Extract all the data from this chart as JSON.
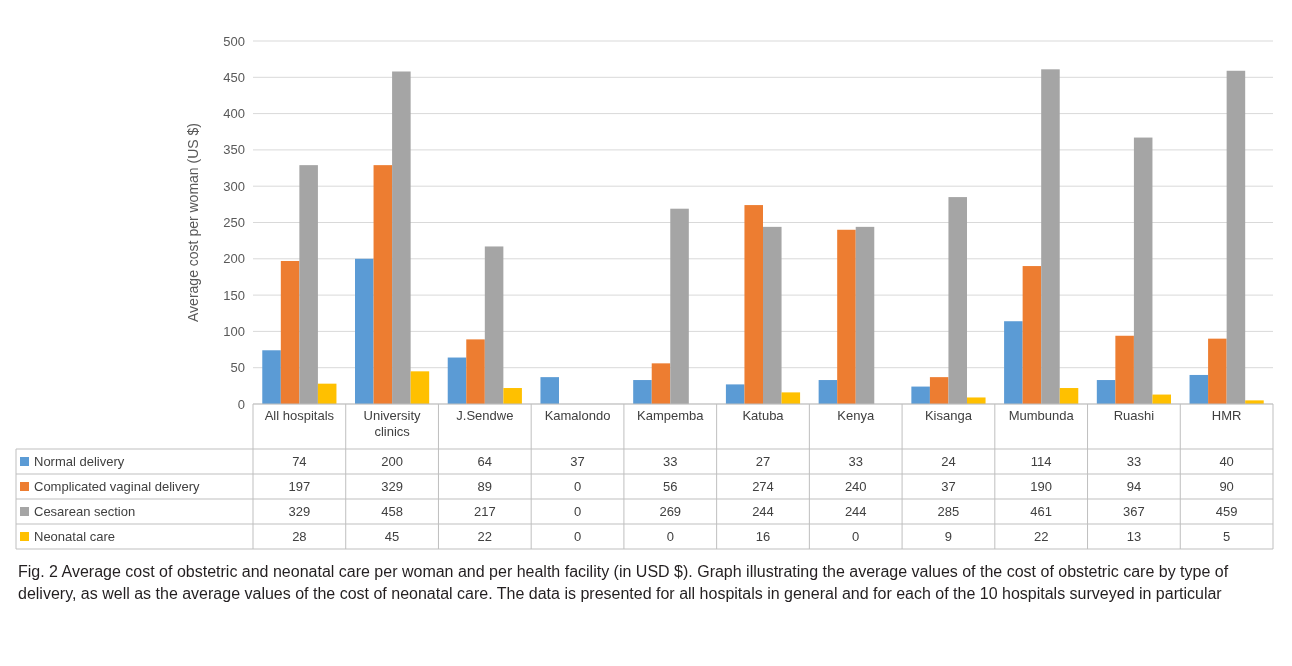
{
  "chart_data": {
    "type": "bar",
    "ylabel": "Average cost per woman (US $)",
    "categories": [
      "All hospitals",
      "University clinics",
      "J.Sendwe",
      "Kamalondo",
      "Kampemba",
      "Katuba",
      "Kenya",
      "Kisanga",
      "Mumbunda",
      "Ruashi",
      "HMR"
    ],
    "series": [
      {
        "name": "Normal delivery",
        "color": "#5b9bd5",
        "values": [
          74,
          200,
          64,
          37,
          33,
          27,
          33,
          24,
          114,
          33,
          40
        ]
      },
      {
        "name": "Complicated vaginal delivery",
        "color": "#ed7d31",
        "values": [
          197,
          329,
          89,
          0,
          56,
          274,
          240,
          37,
          190,
          94,
          90
        ]
      },
      {
        "name": "Cesarean section",
        "color": "#a5a5a5",
        "values": [
          329,
          458,
          217,
          0,
          269,
          244,
          244,
          285,
          461,
          367,
          459
        ]
      },
      {
        "name": "Neonatal care",
        "color": "#ffc000",
        "values": [
          28,
          45,
          22,
          0,
          0,
          16,
          0,
          9,
          22,
          13,
          5
        ]
      }
    ],
    "ylim": [
      0,
      500
    ],
    "yticks": [
      0,
      50,
      100,
      150,
      200,
      250,
      300,
      350,
      400,
      450,
      500
    ],
    "grid": "y",
    "legend": "bottom",
    "data_labels": true,
    "annotations": [
      "Fig. 2 Average cost of obstetric and neonatal care per woman and per health facility (in USD $). Graph illustrating the average values of the cost of obstetric care by type of delivery, as well as the average values of the cost of neonatal care. The data is presented for all hospitals in general and for each of the 10 hospitals surveyed in particular"
    ]
  }
}
